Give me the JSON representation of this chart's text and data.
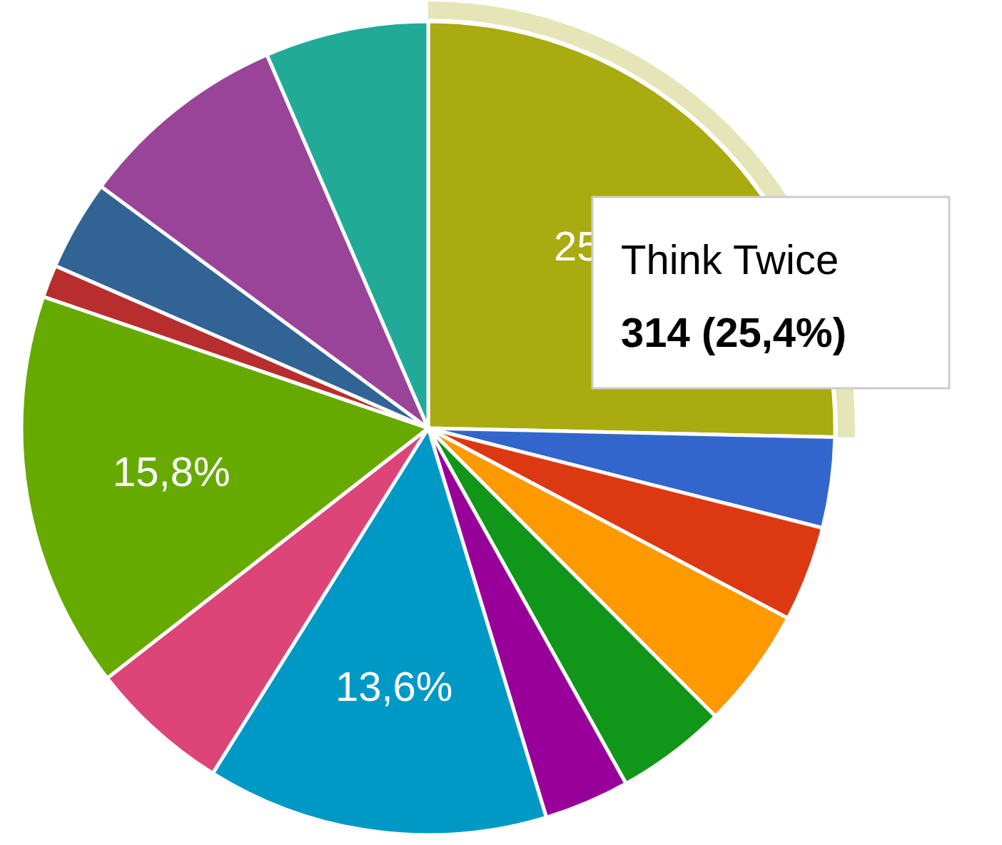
{
  "chart_data": {
    "type": "pie",
    "categories": [
      "Think Twice",
      null,
      null,
      null,
      null,
      null,
      null,
      null,
      null,
      null,
      null,
      null,
      null
    ],
    "values": [
      25.4,
      3.6,
      3.8,
      4.8,
      4.4,
      3.4,
      13.6,
      5.6,
      15.8,
      1.3,
      3.6,
      8.4,
      6.5
    ],
    "colors": [
      "#aaaa11",
      "#3366cc",
      "#dc3912",
      "#ff9900",
      "#109618",
      "#990099",
      "#0099c6",
      "#dd4477",
      "#66aa00",
      "#b82e2e",
      "#316395",
      "#994499",
      "#22aa99"
    ],
    "value_labels": [
      "25",
      null,
      null,
      null,
      null,
      null,
      "13,6%",
      null,
      "15,8%",
      null,
      null,
      null,
      null
    ],
    "annotations": [
      "314 (25,4%)"
    ]
  }
}
